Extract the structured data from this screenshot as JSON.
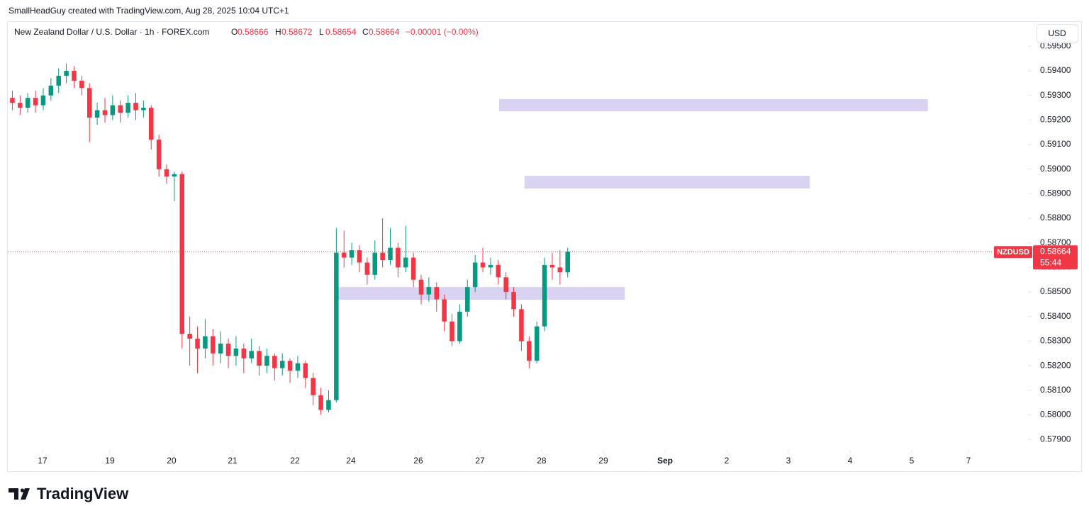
{
  "header": "SmallHeadGuy created with TradingView.com, Aug 28, 2025 10:04 UTC+1",
  "footer_logo": "TradingView",
  "chart_data": {
    "type": "candlestick",
    "title": "New Zealand Dollar / U.S. Dollar · 1h · FOREX.com",
    "legend": {
      "open_label": "O",
      "open": 0.58666,
      "high_label": "H",
      "high": 0.58672,
      "low_label": "L",
      "low": 0.58654,
      "close_label": "C",
      "close": 0.58664,
      "change": "−0.00001 (−0.00%)"
    },
    "symbol": "NZDUSD",
    "last_price": 0.58664,
    "countdown": "55:44",
    "currency": "USD",
    "up_color": "#089981",
    "down_color": "#f23645",
    "zone_color": "#d9d2f0",
    "grid": false,
    "xlim": [
      -0.5,
      131.5
    ],
    "ylim": [
      0.57857,
      0.59602
    ],
    "xticks": [
      {
        "value": 3.91,
        "label": "17"
      },
      {
        "value": 12.64,
        "label": "19"
      },
      {
        "value": 20.64,
        "label": "20"
      },
      {
        "value": 28.55,
        "label": "21"
      },
      {
        "value": 36.64,
        "label": "22"
      },
      {
        "value": 43.9,
        "label": "24"
      },
      {
        "value": 52.63,
        "label": "26"
      },
      {
        "value": 60.63,
        "label": "27"
      },
      {
        "value": 68.62,
        "label": "28"
      },
      {
        "value": 76.62,
        "label": "29"
      },
      {
        "value": 84.62,
        "label": "Sep"
      },
      {
        "value": 92.61,
        "label": "2"
      },
      {
        "value": 100.61,
        "label": "3"
      },
      {
        "value": 108.61,
        "label": "4"
      },
      {
        "value": 116.61,
        "label": "5"
      },
      {
        "value": 123.96,
        "label": "7"
      }
    ],
    "yticks": [
      {
        "value": 0.579,
        "label": "0.57900"
      },
      {
        "value": 0.58,
        "label": "0.58000"
      },
      {
        "value": 0.581,
        "label": "0.58100"
      },
      {
        "value": 0.582,
        "label": "0.58200"
      },
      {
        "value": 0.583,
        "label": "0.58300"
      },
      {
        "value": 0.584,
        "label": "0.58400"
      },
      {
        "value": 0.585,
        "label": "0.58500"
      },
      {
        "value": 0.586,
        "label": "0.58600"
      },
      {
        "value": 0.587,
        "label": "0.58700"
      },
      {
        "value": 0.588,
        "label": "0.58800"
      },
      {
        "value": 0.589,
        "label": "0.58900"
      },
      {
        "value": 0.59,
        "label": "0.59000"
      },
      {
        "value": 0.591,
        "label": "0.59100"
      },
      {
        "value": 0.592,
        "label": "0.59200"
      },
      {
        "value": 0.593,
        "label": "0.59300"
      },
      {
        "value": 0.594,
        "label": "0.59400"
      },
      {
        "value": 0.595,
        "label": "0.59500"
      }
    ],
    "zones": [
      {
        "x": [
          63.1,
          118.7
        ],
        "y": [
          0.59236,
          0.59285
        ]
      },
      {
        "x": [
          66.4,
          103.4
        ],
        "y": [
          0.58921,
          0.58973
        ]
      },
      {
        "x": [
          42.1,
          79.4
        ],
        "y": [
          0.58468,
          0.5852
        ]
      }
    ],
    "x": [
      0,
      1,
      2,
      3,
      4,
      5,
      6,
      7,
      8,
      9,
      10,
      11,
      12,
      13,
      14,
      15,
      16,
      17,
      18,
      19,
      20,
      21,
      22,
      23,
      24,
      25,
      26,
      27,
      28,
      29,
      30,
      31,
      32,
      33,
      34,
      35,
      36,
      37,
      38,
      39,
      40,
      41,
      42,
      43,
      44,
      45,
      46,
      47,
      48,
      49,
      50,
      51,
      52,
      53,
      54,
      55,
      56,
      57,
      58,
      59,
      60,
      61,
      62,
      63,
      64,
      65,
      66,
      67,
      68,
      69,
      70,
      71,
      72
    ],
    "ohlc": [
      [
        0.5929,
        0.5932,
        0.5924,
        0.5927
      ],
      [
        0.5927,
        0.593,
        0.5922,
        0.5925
      ],
      [
        0.5925,
        0.5931,
        0.5923,
        0.5929
      ],
      [
        0.5929,
        0.5932,
        0.5923,
        0.5926
      ],
      [
        0.5926,
        0.5933,
        0.5924,
        0.593
      ],
      [
        0.593,
        0.5937,
        0.5928,
        0.5934
      ],
      [
        0.5934,
        0.5941,
        0.5931,
        0.5938
      ],
      [
        0.5938,
        0.5943,
        0.5935,
        0.594
      ],
      [
        0.594,
        0.5942,
        0.5933,
        0.5936
      ],
      [
        0.5936,
        0.5938,
        0.593,
        0.5933
      ],
      [
        0.5933,
        0.5935,
        0.5911,
        0.5921
      ],
      [
        0.5921,
        0.5927,
        0.5918,
        0.5924
      ],
      [
        0.5924,
        0.5929,
        0.5919,
        0.5922
      ],
      [
        0.5922,
        0.593,
        0.592,
        0.5926
      ],
      [
        0.5926,
        0.5928,
        0.5919,
        0.5923
      ],
      [
        0.5923,
        0.593,
        0.5921,
        0.5927
      ],
      [
        0.5927,
        0.5931,
        0.592,
        0.5924
      ],
      [
        0.5924,
        0.5928,
        0.5921,
        0.5925
      ],
      [
        0.5925,
        0.5926,
        0.5908,
        0.5912
      ],
      [
        0.5912,
        0.5914,
        0.5897,
        0.59
      ],
      [
        0.59,
        0.5902,
        0.5894,
        0.5897
      ],
      [
        0.5897,
        0.5899,
        0.5887,
        0.5898
      ],
      [
        0.5898,
        0.5899,
        0.5827,
        0.5833
      ],
      [
        0.5833,
        0.584,
        0.582,
        0.5831
      ],
      [
        0.5831,
        0.5836,
        0.5817,
        0.5827
      ],
      [
        0.5827,
        0.5839,
        0.5823,
        0.5832
      ],
      [
        0.5832,
        0.5835,
        0.582,
        0.5825
      ],
      [
        0.5825,
        0.5834,
        0.5821,
        0.5829
      ],
      [
        0.5829,
        0.5831,
        0.5819,
        0.5824
      ],
      [
        0.5824,
        0.5832,
        0.582,
        0.5827
      ],
      [
        0.5827,
        0.5829,
        0.5817,
        0.5823
      ],
      [
        0.5823,
        0.5831,
        0.5821,
        0.5826
      ],
      [
        0.5826,
        0.5828,
        0.5816,
        0.582
      ],
      [
        0.582,
        0.5827,
        0.5817,
        0.5824
      ],
      [
        0.5824,
        0.5825,
        0.5814,
        0.5819
      ],
      [
        0.5819,
        0.5825,
        0.5816,
        0.5822
      ],
      [
        0.5822,
        0.5823,
        0.5813,
        0.5818
      ],
      [
        0.5818,
        0.5824,
        0.5815,
        0.5821
      ],
      [
        0.5821,
        0.5822,
        0.5811,
        0.5815
      ],
      [
        0.5815,
        0.5817,
        0.5804,
        0.5808
      ],
      [
        0.5808,
        0.5811,
        0.58,
        0.5802
      ],
      [
        0.5802,
        0.581,
        0.5801,
        0.5806
      ],
      [
        0.5806,
        0.5876,
        0.5805,
        0.5866
      ],
      [
        0.5866,
        0.5875,
        0.586,
        0.5864
      ],
      [
        0.5864,
        0.587,
        0.5861,
        0.5867
      ],
      [
        0.5867,
        0.5869,
        0.5858,
        0.5862
      ],
      [
        0.5862,
        0.5864,
        0.5853,
        0.5857
      ],
      [
        0.5857,
        0.5871,
        0.5855,
        0.5866
      ],
      [
        0.5866,
        0.588,
        0.586,
        0.5863
      ],
      [
        0.5863,
        0.5876,
        0.5861,
        0.5868
      ],
      [
        0.5868,
        0.587,
        0.5856,
        0.586
      ],
      [
        0.586,
        0.5877,
        0.5858,
        0.5864
      ],
      [
        0.5864,
        0.5866,
        0.5852,
        0.5855
      ],
      [
        0.5855,
        0.5857,
        0.5845,
        0.5849
      ],
      [
        0.5849,
        0.5856,
        0.5846,
        0.5852
      ],
      [
        0.5852,
        0.5854,
        0.5842,
        0.5847
      ],
      [
        0.5847,
        0.5849,
        0.5834,
        0.5838
      ],
      [
        0.5838,
        0.5841,
        0.5828,
        0.583
      ],
      [
        0.583,
        0.5845,
        0.5829,
        0.5842
      ],
      [
        0.5842,
        0.5855,
        0.584,
        0.5852
      ],
      [
        0.5852,
        0.5865,
        0.585,
        0.5862
      ],
      [
        0.5862,
        0.5868,
        0.5858,
        0.586
      ],
      [
        0.586,
        0.5864,
        0.5857,
        0.5861
      ],
      [
        0.5861,
        0.5863,
        0.5853,
        0.5856
      ],
      [
        0.5856,
        0.5858,
        0.5847,
        0.585
      ],
      [
        0.585,
        0.5852,
        0.584,
        0.5843
      ],
      [
        0.5843,
        0.5845,
        0.5826,
        0.583
      ],
      [
        0.583,
        0.5832,
        0.5819,
        0.5822
      ],
      [
        0.5822,
        0.5838,
        0.5821,
        0.5836
      ],
      [
        0.5836,
        0.5864,
        0.5834,
        0.5861
      ],
      [
        0.5861,
        0.5866,
        0.5855,
        0.586
      ],
      [
        0.586,
        0.5867,
        0.5853,
        0.5858
      ],
      [
        0.5858,
        0.5868,
        0.5856,
        0.58664
      ]
    ]
  }
}
